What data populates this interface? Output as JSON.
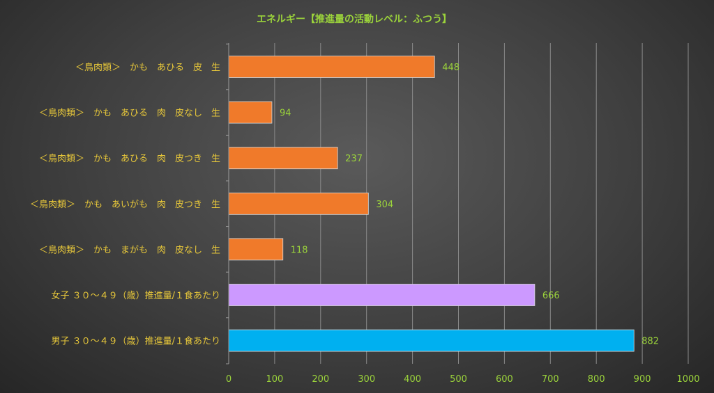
{
  "chart_data": {
    "type": "bar",
    "orientation": "horizontal",
    "title": "エネルギー【推進量の活動レベル：ふつう】",
    "categories": [
      "＜鳥肉類＞　かも　あひる　皮　生",
      "＜鳥肉類＞　かも　あひる　肉　皮なし　生",
      "＜鳥肉類＞　かも　あひる　肉　皮つき　生",
      "＜鳥肉類＞　かも　あいがも　肉　皮つき　生",
      "＜鳥肉類＞　かも　まがも　肉　皮なし　生",
      "女子 ３０～４９（歳）推進量/１食あたり",
      "男子 ３０～４９（歳）推進量/１食あたり"
    ],
    "values": [
      448,
      94,
      237,
      304,
      118,
      666,
      882
    ],
    "bar_colors": [
      "#f07a2a",
      "#f07a2a",
      "#f07a2a",
      "#f07a2a",
      "#f07a2a",
      "#cc99ff",
      "#00b0f0"
    ],
    "xlim": [
      0,
      1000
    ],
    "xticks": [
      "0",
      "100",
      "200",
      "300",
      "400",
      "500",
      "600",
      "700",
      "800",
      "900",
      "1000"
    ],
    "grid": true,
    "legend": "none",
    "xlabel": "",
    "ylabel": ""
  }
}
